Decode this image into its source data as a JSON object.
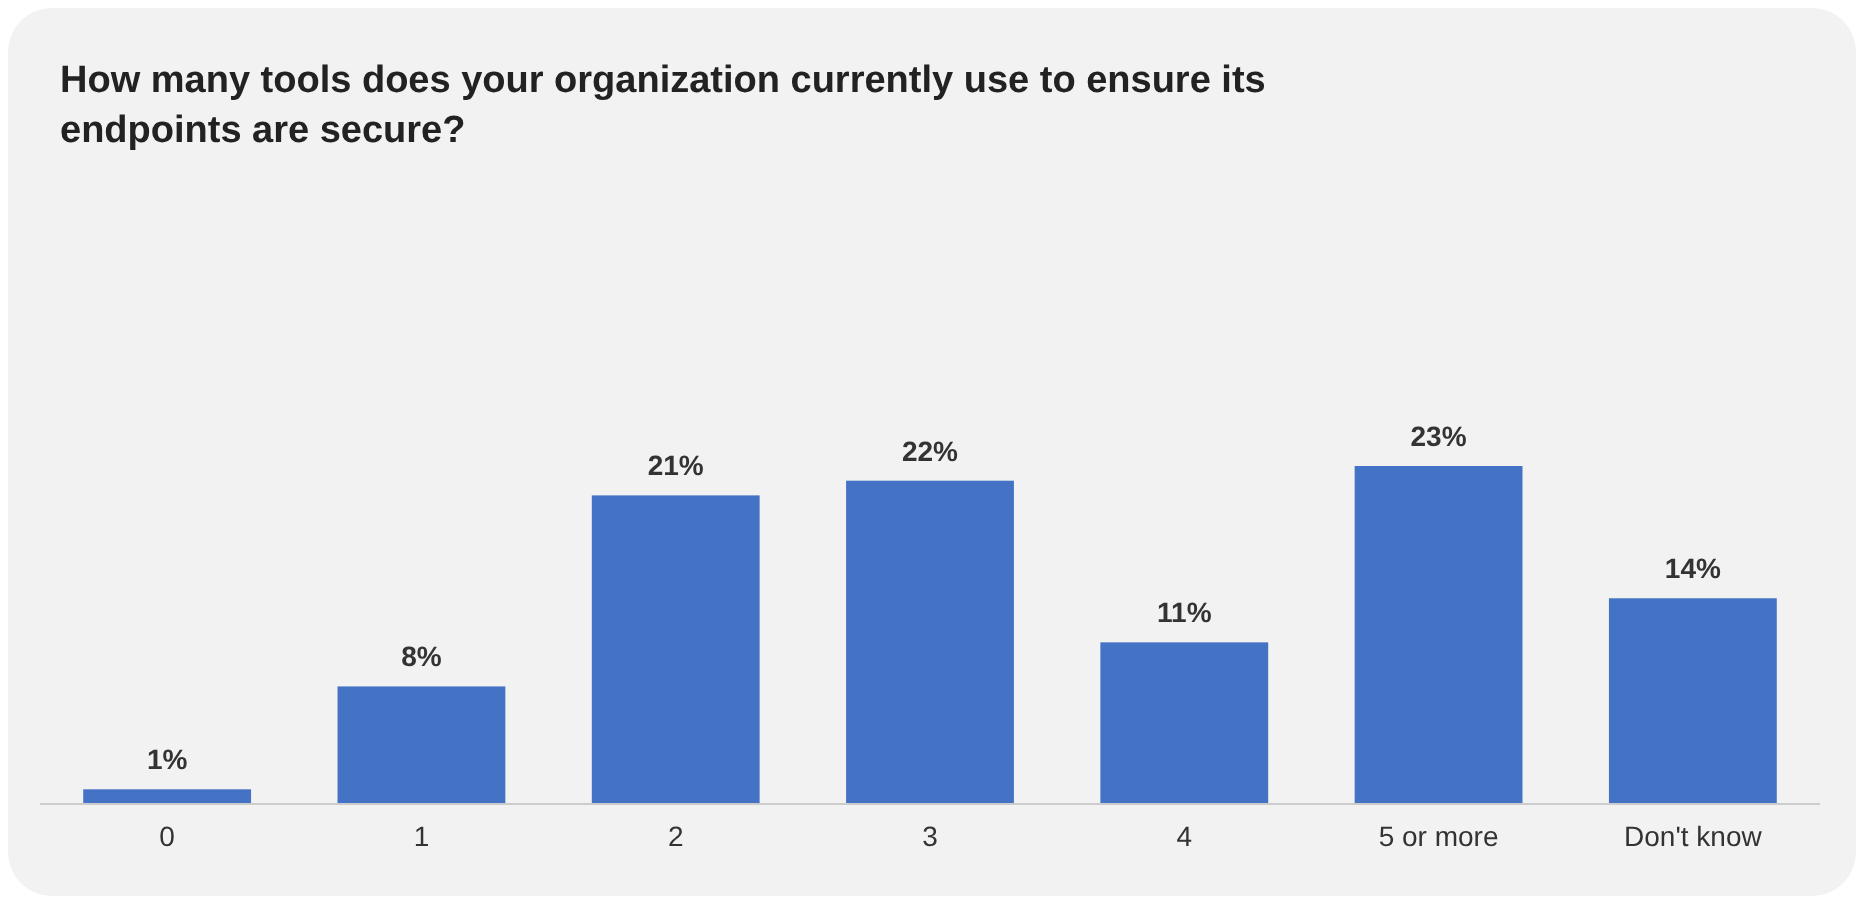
{
  "chart_data": {
    "type": "bar",
    "title": "How many tools does your organization currently use to ensure its endpoints are secure?",
    "categories": [
      "0",
      "1",
      "2",
      "3",
      "4",
      "5 or more",
      "Don't know"
    ],
    "values": [
      1,
      8,
      21,
      22,
      11,
      23,
      14
    ],
    "value_labels": [
      "1%",
      "8%",
      "21%",
      "22%",
      "11%",
      "23%",
      "14%"
    ],
    "color": "#4472c4"
  }
}
